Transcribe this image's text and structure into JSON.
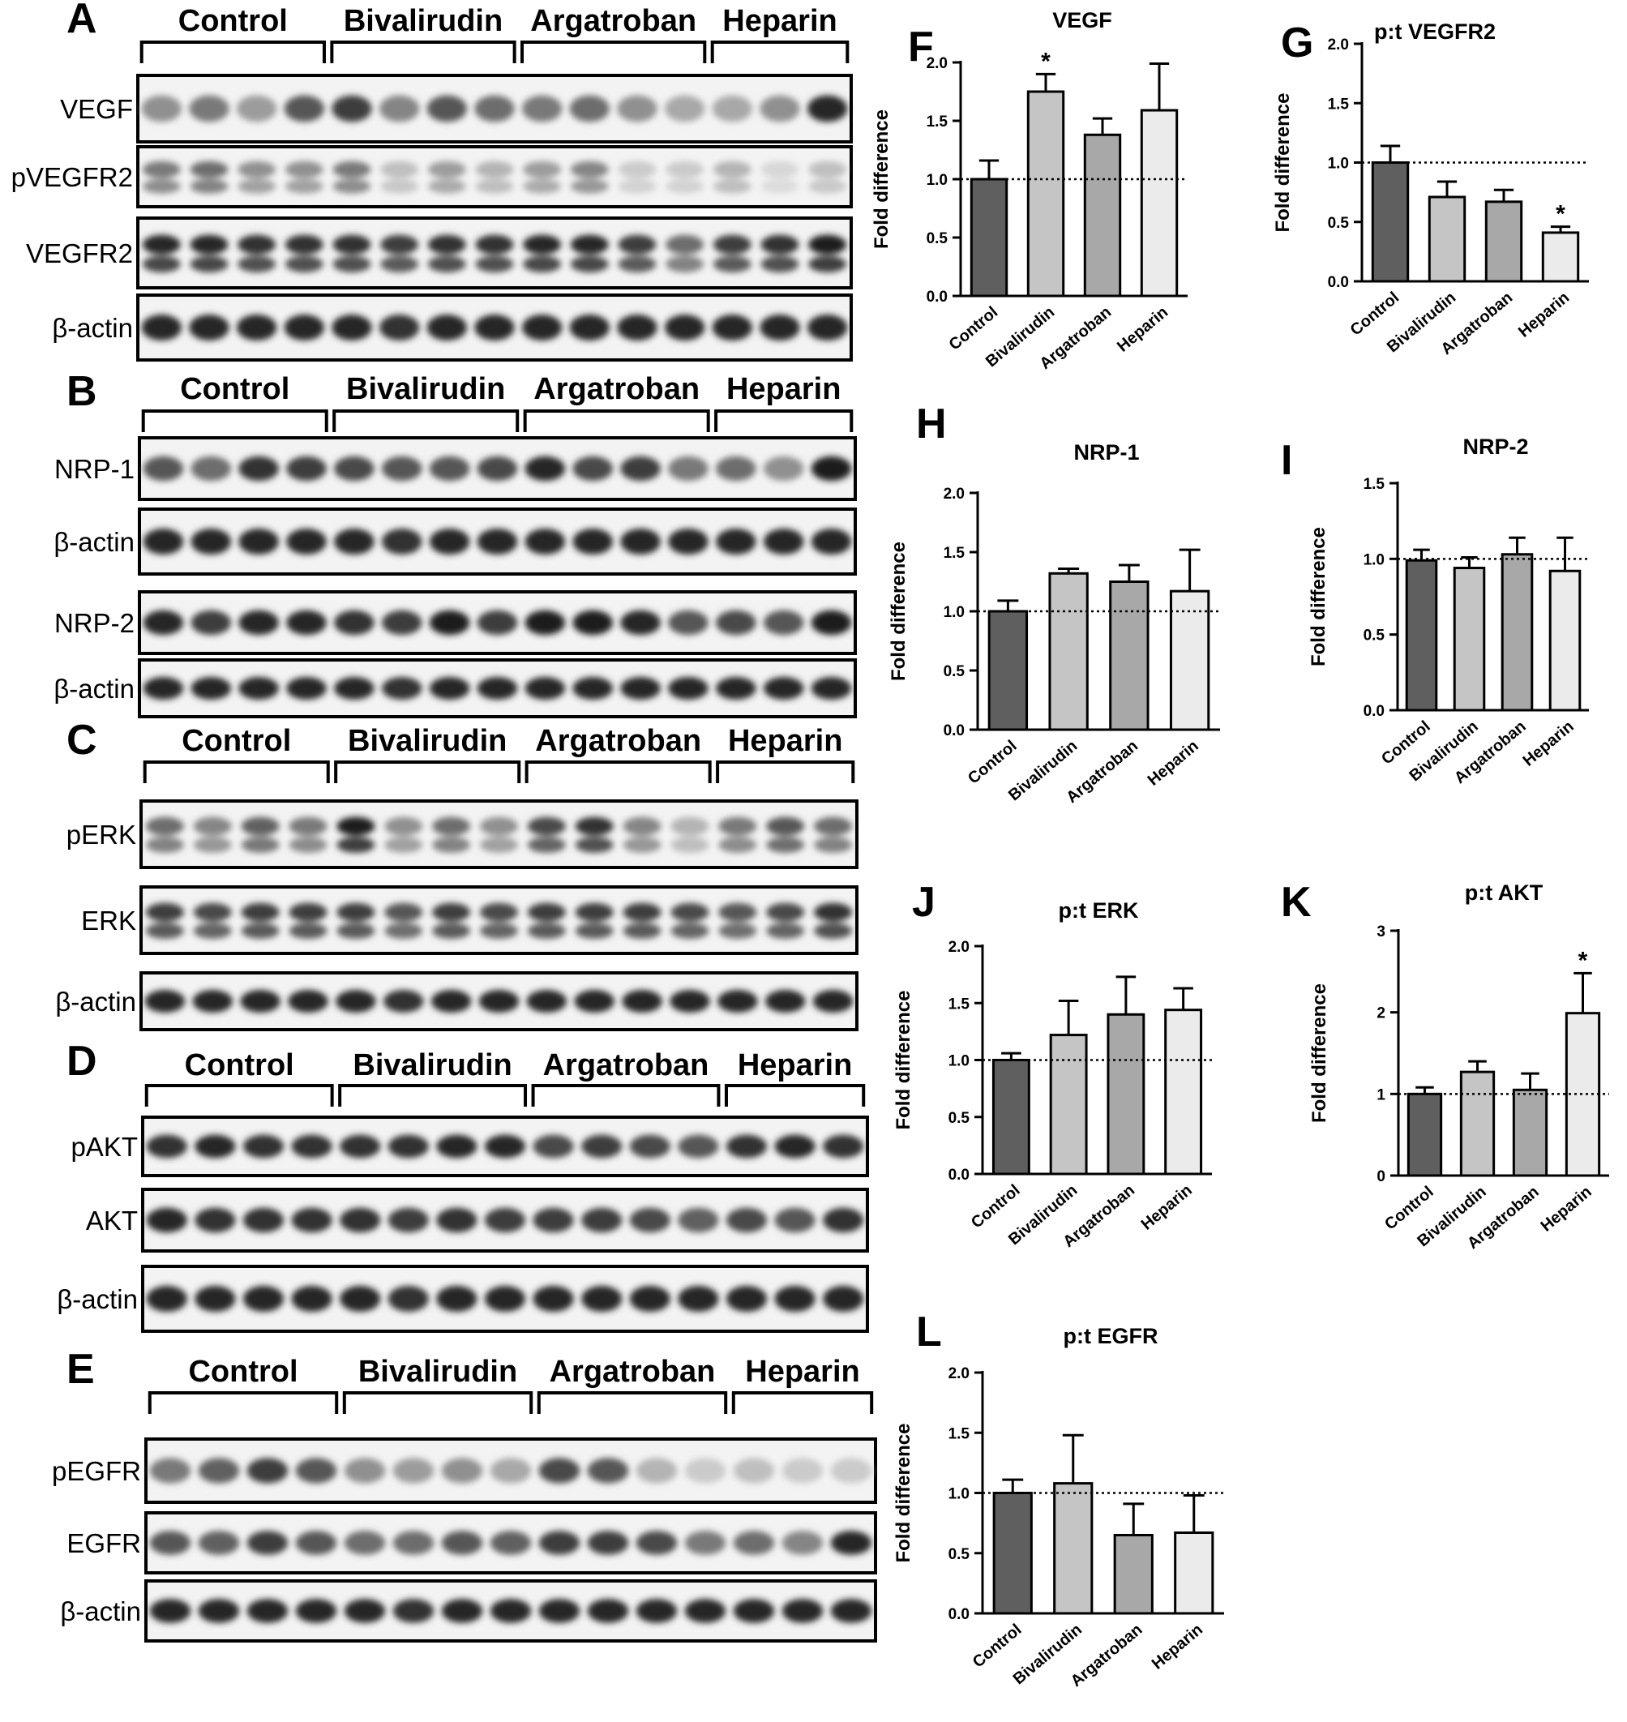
{
  "blot_groups": [
    "Control",
    "Bivalirudin",
    "Argatroban",
    "Heparin"
  ],
  "blot_panels": [
    {
      "letter": "A",
      "rows": [
        {
          "label": "VEGF",
          "intensity": [
            0.45,
            0.55,
            0.4,
            0.7,
            0.8,
            0.5,
            0.7,
            0.6,
            0.55,
            0.6,
            0.45,
            0.35,
            0.35,
            0.45,
            0.9
          ],
          "double": false
        },
        {
          "label": "pVEGFR2",
          "intensity": [
            0.55,
            0.6,
            0.45,
            0.45,
            0.55,
            0.25,
            0.4,
            0.3,
            0.4,
            0.5,
            0.2,
            0.2,
            0.3,
            0.15,
            0.25
          ],
          "double": true
        },
        {
          "label": "VEGFR2",
          "intensity": [
            0.9,
            0.9,
            0.85,
            0.85,
            0.85,
            0.8,
            0.85,
            0.85,
            0.9,
            0.9,
            0.8,
            0.6,
            0.8,
            0.85,
            0.95
          ],
          "double": true
        },
        {
          "label": "β-actin",
          "intensity": [
            0.9,
            0.9,
            0.9,
            0.9,
            0.9,
            0.85,
            0.9,
            0.9,
            0.9,
            0.9,
            0.9,
            0.9,
            0.9,
            0.9,
            0.9
          ],
          "double": false
        }
      ]
    },
    {
      "letter": "B",
      "rows": [
        {
          "label": "NRP-1",
          "intensity": [
            0.7,
            0.6,
            0.85,
            0.8,
            0.75,
            0.7,
            0.7,
            0.75,
            0.9,
            0.75,
            0.8,
            0.55,
            0.6,
            0.45,
            0.95
          ],
          "double": false
        },
        {
          "label": "β-actin",
          "intensity": [
            0.9,
            0.9,
            0.9,
            0.9,
            0.9,
            0.85,
            0.9,
            0.9,
            0.9,
            0.9,
            0.9,
            0.9,
            0.9,
            0.9,
            0.9
          ],
          "double": false
        },
        {
          "label": "NRP-2",
          "intensity": [
            0.9,
            0.8,
            0.9,
            0.9,
            0.85,
            0.8,
            0.95,
            0.8,
            0.95,
            0.95,
            0.9,
            0.7,
            0.75,
            0.7,
            0.95
          ],
          "double": false
        },
        {
          "label": "β-actin",
          "intensity": [
            0.9,
            0.9,
            0.9,
            0.9,
            0.9,
            0.85,
            0.9,
            0.9,
            0.9,
            0.9,
            0.9,
            0.9,
            0.9,
            0.9,
            0.9
          ],
          "double": false
        }
      ]
    },
    {
      "letter": "C",
      "rows": [
        {
          "label": "pERK",
          "intensity": [
            0.6,
            0.5,
            0.65,
            0.55,
            0.95,
            0.45,
            0.6,
            0.45,
            0.75,
            0.85,
            0.5,
            0.3,
            0.55,
            0.7,
            0.6
          ],
          "double": true
        },
        {
          "label": "ERK",
          "intensity": [
            0.8,
            0.75,
            0.8,
            0.8,
            0.8,
            0.7,
            0.8,
            0.75,
            0.8,
            0.8,
            0.8,
            0.75,
            0.7,
            0.75,
            0.85
          ],
          "double": true
        },
        {
          "label": "β-actin",
          "intensity": [
            0.9,
            0.9,
            0.9,
            0.9,
            0.9,
            0.85,
            0.9,
            0.9,
            0.9,
            0.9,
            0.9,
            0.9,
            0.9,
            0.9,
            0.9
          ],
          "double": false
        }
      ]
    },
    {
      "letter": "D",
      "rows": [
        {
          "label": "pAKT",
          "intensity": [
            0.85,
            0.9,
            0.85,
            0.85,
            0.85,
            0.85,
            0.9,
            0.9,
            0.75,
            0.8,
            0.75,
            0.7,
            0.85,
            0.9,
            0.85
          ],
          "double": false
        },
        {
          "label": "AKT",
          "intensity": [
            0.9,
            0.85,
            0.85,
            0.85,
            0.85,
            0.8,
            0.85,
            0.8,
            0.8,
            0.8,
            0.75,
            0.65,
            0.75,
            0.7,
            0.85
          ],
          "double": false
        },
        {
          "label": "β-actin",
          "intensity": [
            0.9,
            0.9,
            0.9,
            0.9,
            0.9,
            0.85,
            0.9,
            0.9,
            0.9,
            0.9,
            0.9,
            0.9,
            0.9,
            0.9,
            0.9
          ],
          "double": false
        }
      ]
    },
    {
      "letter": "E",
      "rows": [
        {
          "label": "pEGFR",
          "intensity": [
            0.55,
            0.65,
            0.8,
            0.7,
            0.45,
            0.4,
            0.45,
            0.35,
            0.75,
            0.7,
            0.3,
            0.2,
            0.25,
            0.2,
            0.2
          ],
          "double": false
        },
        {
          "label": "EGFR",
          "intensity": [
            0.7,
            0.65,
            0.8,
            0.7,
            0.6,
            0.6,
            0.7,
            0.65,
            0.8,
            0.8,
            0.75,
            0.55,
            0.6,
            0.5,
            0.9
          ],
          "double": false
        },
        {
          "label": "β-actin",
          "intensity": [
            0.9,
            0.9,
            0.9,
            0.9,
            0.9,
            0.85,
            0.9,
            0.9,
            0.9,
            0.9,
            0.9,
            0.9,
            0.9,
            0.9,
            0.9
          ],
          "double": false
        }
      ]
    }
  ],
  "bar_colors": [
    "#5f5f5f",
    "#c5c5c5",
    "#a8a8a8",
    "#ebebeb"
  ],
  "chart_data": [
    {
      "letter": "F",
      "type": "bar",
      "title": "VEGF",
      "ylabel": "Fold difference",
      "categories": [
        "Control",
        "Bivalirudin",
        "Argatroban",
        "Heparin"
      ],
      "values": [
        1.0,
        1.75,
        1.38,
        1.59
      ],
      "errors": [
        0.16,
        0.15,
        0.14,
        0.4
      ],
      "ylim": [
        0,
        2.0
      ],
      "yticks": [
        "0.0",
        "0.5",
        "1.0",
        "1.5",
        "2.0"
      ],
      "reference_line": 1.0,
      "significance": [
        "",
        "*",
        "",
        ""
      ]
    },
    {
      "letter": "G",
      "type": "bar",
      "title": "p:t VEGFR2",
      "ylabel": "Fold difference",
      "categories": [
        "Control",
        "Bivalirudin",
        "Argatroban",
        "Heparin"
      ],
      "values": [
        1.0,
        0.71,
        0.67,
        0.41
      ],
      "errors": [
        0.14,
        0.13,
        0.1,
        0.05
      ],
      "ylim": [
        0,
        2.0
      ],
      "yticks": [
        "0.0",
        "0.5",
        "1.0",
        "1.5",
        "2.0"
      ],
      "reference_line": 1.0,
      "significance": [
        "",
        "",
        "",
        "*"
      ]
    },
    {
      "letter": "H",
      "type": "bar",
      "title": "NRP-1",
      "ylabel": "Fold difference",
      "categories": [
        "Control",
        "Bivalirudin",
        "Argatroban",
        "Heparin"
      ],
      "values": [
        1.0,
        1.32,
        1.25,
        1.17
      ],
      "errors": [
        0.09,
        0.04,
        0.14,
        0.35
      ],
      "ylim": [
        0,
        2.0
      ],
      "yticks": [
        "0.0",
        "0.5",
        "1.0",
        "1.5",
        "2.0"
      ],
      "reference_line": 1.0,
      "significance": [
        "",
        "",
        "",
        ""
      ]
    },
    {
      "letter": "I",
      "type": "bar",
      "title": "NRP-2",
      "ylabel": "Fold difference",
      "categories": [
        "Control",
        "Bivalirudin",
        "Argatroban",
        "Heparin"
      ],
      "values": [
        0.99,
        0.94,
        1.03,
        0.92
      ],
      "errors": [
        0.07,
        0.07,
        0.11,
        0.22
      ],
      "ylim": [
        0,
        1.5
      ],
      "yticks": [
        "0.0",
        "0.5",
        "1.0",
        "1.5"
      ],
      "reference_line": 1.0,
      "significance": [
        "",
        "",
        "",
        ""
      ]
    },
    {
      "letter": "J",
      "type": "bar",
      "title": "p:t ERK",
      "ylabel": "Fold difference",
      "categories": [
        "Control",
        "Bivalirudin",
        "Argatroban",
        "Heparin"
      ],
      "values": [
        1.0,
        1.22,
        1.4,
        1.44
      ],
      "errors": [
        0.06,
        0.3,
        0.33,
        0.19
      ],
      "ylim": [
        0,
        2.0
      ],
      "yticks": [
        "0.0",
        "0.5",
        "1.0",
        "1.5",
        "2.0"
      ],
      "reference_line": 1.0,
      "significance": [
        "",
        "",
        "",
        ""
      ]
    },
    {
      "letter": "K",
      "type": "bar",
      "title": "p:t AKT",
      "ylabel": "Fold difference",
      "categories": [
        "Control",
        "Bivalirudin",
        "Argatroban",
        "Heparin"
      ],
      "values": [
        1.0,
        1.27,
        1.05,
        1.99
      ],
      "errors": [
        0.08,
        0.13,
        0.2,
        0.49
      ],
      "ylim": [
        0,
        3
      ],
      "yticks": [
        "0",
        "1",
        "2",
        "3"
      ],
      "reference_line": 1.0,
      "significance": [
        "",
        "",
        "",
        "*"
      ]
    },
    {
      "letter": "L",
      "type": "bar",
      "title": "p:t EGFR",
      "ylabel": "Fold difference",
      "categories": [
        "Control",
        "Bivalirudin",
        "Argatroban",
        "Heparin"
      ],
      "values": [
        1.0,
        1.08,
        0.65,
        0.67
      ],
      "errors": [
        0.11,
        0.4,
        0.26,
        0.31
      ],
      "ylim": [
        0,
        2.0
      ],
      "yticks": [
        "0.0",
        "0.5",
        "1.0",
        "1.5",
        "2.0"
      ],
      "reference_line": 1.0,
      "significance": [
        "",
        "",
        "",
        ""
      ]
    }
  ]
}
